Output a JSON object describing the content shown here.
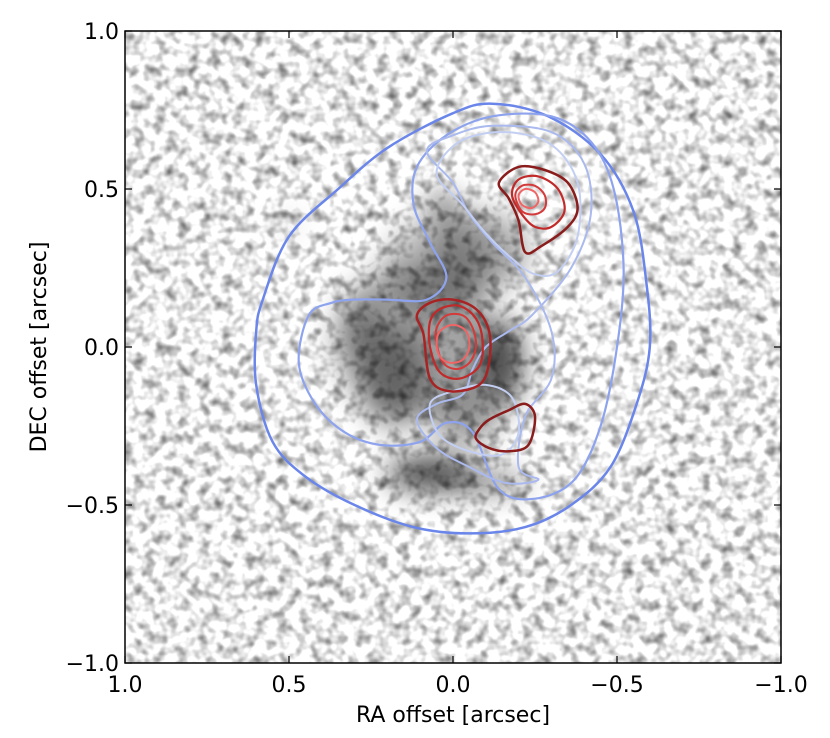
{
  "chart_data": {
    "type": "contour",
    "title": "",
    "xlabel": "RA offset [arcsec]",
    "ylabel": "DEC offset [arcsec]",
    "xlim": [
      1.0,
      -1.0
    ],
    "ylim": [
      -1.0,
      1.0
    ],
    "x_inverted": true,
    "grid": false,
    "background": "grayscale image",
    "x_ticks": [
      {
        "value": 1.0,
        "label": "1.0"
      },
      {
        "value": 0.5,
        "label": "0.5"
      },
      {
        "value": 0.0,
        "label": "0.0"
      },
      {
        "value": -0.5,
        "label": "−0.5"
      },
      {
        "value": -1.0,
        "label": "−1.0"
      }
    ],
    "y_ticks": [
      {
        "value": 1.0,
        "label": "1.0"
      },
      {
        "value": 0.5,
        "label": "0.5"
      },
      {
        "value": 0.0,
        "label": "0.0"
      },
      {
        "value": -0.5,
        "label": "−0.5"
      },
      {
        "value": -1.0,
        "label": "−1.0"
      }
    ],
    "blobs": [
      {
        "x": 0.03,
        "y": 0.45,
        "rx": 0.04,
        "ry": 0.03,
        "shade": 0.85
      },
      {
        "x": 0.12,
        "y": 0.02,
        "rx": 0.24,
        "ry": 0.24,
        "shade": 0.35
      },
      {
        "x": 0.05,
        "y": 0.25,
        "rx": 0.16,
        "ry": 0.16,
        "shade": 0.25
      },
      {
        "x": -0.08,
        "y": 0.3,
        "rx": 0.15,
        "ry": 0.13,
        "shade": 0.35
      },
      {
        "x": -0.15,
        "y": -0.05,
        "rx": 0.06,
        "ry": 0.14,
        "shade": 0.75
      },
      {
        "x": -0.04,
        "y": -0.22,
        "rx": 0.1,
        "ry": 0.09,
        "shade": 0.4
      },
      {
        "x": 0.18,
        "y": -0.1,
        "rx": 0.1,
        "ry": 0.16,
        "shade": 0.4
      },
      {
        "x": 0.07,
        "y": -0.4,
        "rx": 0.13,
        "ry": 0.05,
        "shade": 0.8
      },
      {
        "x": -0.1,
        "y": -0.43,
        "rx": 0.13,
        "ry": 0.03,
        "shade": 0.55
      },
      {
        "x": 0.28,
        "y": 0.06,
        "rx": 0.05,
        "ry": 0.1,
        "shade": 0.35
      },
      {
        "x": 0.5,
        "y": 0.39,
        "rx": 0.012,
        "ry": 0.012,
        "shade": 1.0
      }
    ],
    "series": [
      {
        "color": "#6b86ea",
        "width": 2.5,
        "points": [
          [
            0.58,
            0.15
          ],
          [
            0.5,
            0.35
          ],
          [
            0.35,
            0.5
          ],
          [
            0.2,
            0.63
          ],
          [
            0.0,
            0.74
          ],
          [
            -0.12,
            0.77
          ],
          [
            -0.29,
            0.73
          ],
          [
            -0.45,
            0.61
          ],
          [
            -0.55,
            0.43
          ],
          [
            -0.59,
            0.2
          ],
          [
            -0.6,
            0.0
          ],
          [
            -0.56,
            -0.18
          ],
          [
            -0.48,
            -0.38
          ],
          [
            -0.36,
            -0.5
          ],
          [
            -0.22,
            -0.57
          ],
          [
            -0.05,
            -0.59
          ],
          [
            0.12,
            -0.57
          ],
          [
            0.3,
            -0.5
          ],
          [
            0.45,
            -0.41
          ],
          [
            0.55,
            -0.3
          ],
          [
            0.6,
            -0.12
          ],
          [
            0.6,
            0.05
          ]
        ]
      },
      {
        "color": "#8ea3ee",
        "width": 2.2,
        "points": [
          [
            0.44,
            0.1
          ],
          [
            0.47,
            -0.05
          ],
          [
            0.42,
            -0.18
          ],
          [
            0.33,
            -0.27
          ],
          [
            0.22,
            -0.31
          ],
          [
            0.1,
            -0.3
          ],
          [
            0.02,
            -0.24
          ],
          [
            -0.06,
            -0.27
          ],
          [
            -0.14,
            -0.45
          ],
          [
            -0.25,
            -0.48
          ],
          [
            -0.37,
            -0.42
          ],
          [
            -0.45,
            -0.25
          ],
          [
            -0.5,
            0.0
          ],
          [
            -0.52,
            0.25
          ],
          [
            -0.49,
            0.5
          ],
          [
            -0.42,
            0.65
          ],
          [
            -0.3,
            0.73
          ],
          [
            -0.12,
            0.73
          ],
          [
            0.02,
            0.67
          ],
          [
            0.11,
            0.57
          ],
          [
            0.12,
            0.45
          ],
          [
            0.07,
            0.33
          ],
          [
            0.02,
            0.22
          ],
          [
            0.08,
            0.15
          ],
          [
            0.2,
            0.15
          ],
          [
            0.3,
            0.15
          ],
          [
            0.37,
            0.14
          ]
        ]
      },
      {
        "color": "#aab9ee",
        "width": 2.0,
        "points": [
          [
            0.08,
            0.62
          ],
          [
            0.0,
            0.52
          ],
          [
            -0.05,
            0.42
          ],
          [
            -0.12,
            0.33
          ],
          [
            -0.22,
            0.22
          ],
          [
            -0.3,
            0.05
          ],
          [
            -0.3,
            -0.1
          ],
          [
            -0.22,
            -0.22
          ],
          [
            -0.2,
            -0.38
          ],
          [
            -0.26,
            -0.42
          ],
          [
            -0.16,
            -0.43
          ],
          [
            -0.05,
            -0.38
          ],
          [
            0.05,
            -0.32
          ],
          [
            0.11,
            -0.23
          ],
          [
            0.05,
            -0.18
          ],
          [
            -0.03,
            -0.15
          ],
          [
            -0.06,
            -0.07
          ],
          [
            -0.1,
            0.0
          ],
          [
            -0.17,
            0.05
          ],
          [
            -0.24,
            0.1
          ],
          [
            -0.36,
            0.25
          ],
          [
            -0.42,
            0.42
          ],
          [
            -0.4,
            0.58
          ],
          [
            -0.3,
            0.68
          ],
          [
            -0.12,
            0.7
          ],
          [
            0.0,
            0.67
          ]
        ]
      },
      {
        "color": "#c3cff2",
        "width": 2.0,
        "points": [
          [
            0.05,
            0.55
          ],
          [
            -0.03,
            0.45
          ],
          [
            -0.1,
            0.36
          ],
          [
            -0.18,
            0.28
          ],
          [
            -0.25,
            0.23
          ],
          [
            -0.32,
            0.24
          ],
          [
            -0.38,
            0.35
          ],
          [
            -0.38,
            0.52
          ],
          [
            -0.3,
            0.64
          ],
          [
            -0.16,
            0.68
          ],
          [
            -0.02,
            0.65
          ]
        ]
      },
      {
        "color": "#c3cff2",
        "width": 2.0,
        "points": [
          [
            0.07,
            -0.18
          ],
          [
            0.0,
            -0.14
          ],
          [
            -0.1,
            -0.12
          ],
          [
            -0.18,
            -0.16
          ],
          [
            -0.2,
            -0.27
          ],
          [
            -0.15,
            -0.34
          ],
          [
            -0.05,
            -0.33
          ],
          [
            0.04,
            -0.28
          ]
        ]
      },
      {
        "color": "#a82424",
        "width": 2.5,
        "points": [
          [
            0.09,
            0.04
          ],
          [
            0.11,
            0.1
          ],
          [
            0.07,
            0.14
          ],
          [
            0.0,
            0.15
          ],
          [
            -0.07,
            0.12
          ],
          [
            -0.11,
            0.05
          ],
          [
            -0.11,
            -0.05
          ],
          [
            -0.08,
            -0.12
          ],
          [
            0.01,
            -0.14
          ],
          [
            0.07,
            -0.1
          ]
        ]
      },
      {
        "color": "#c22a2a",
        "width": 2.2,
        "points": [
          [
            0.07,
            0.08
          ],
          [
            0.04,
            0.12
          ],
          [
            -0.02,
            0.13
          ],
          [
            -0.07,
            0.09
          ],
          [
            -0.09,
            0.02
          ],
          [
            -0.08,
            -0.06
          ],
          [
            -0.02,
            -0.1
          ],
          [
            0.04,
            -0.08
          ],
          [
            0.07,
            0.0
          ]
        ]
      },
      {
        "color": "#d53a3a",
        "width": 2.0,
        "points": [
          [
            0.05,
            0.06
          ],
          [
            0.02,
            0.1
          ],
          [
            -0.03,
            0.1
          ],
          [
            -0.06,
            0.06
          ],
          [
            -0.07,
            0.0
          ],
          [
            -0.05,
            -0.05
          ],
          [
            -0.01,
            -0.07
          ],
          [
            0.03,
            -0.05
          ],
          [
            0.05,
            0.01
          ]
        ]
      },
      {
        "color": "#f06565",
        "width": 2.0,
        "points": [
          [
            0.05,
            0.01
          ],
          [
            0.04,
            0.05
          ],
          [
            0.0,
            0.07
          ],
          [
            -0.04,
            0.05
          ],
          [
            -0.05,
            0.0
          ],
          [
            -0.03,
            -0.04
          ],
          [
            0.01,
            -0.05
          ],
          [
            0.04,
            -0.03
          ]
        ]
      },
      {
        "color": "#8a1c1c",
        "width": 2.5,
        "points": [
          [
            -0.07,
            -0.29
          ],
          [
            -0.11,
            -0.32
          ],
          [
            -0.17,
            -0.33
          ],
          [
            -0.23,
            -0.31
          ],
          [
            -0.25,
            -0.22
          ],
          [
            -0.22,
            -0.18
          ],
          [
            -0.17,
            -0.2
          ],
          [
            -0.11,
            -0.23
          ],
          [
            -0.08,
            -0.26
          ]
        ]
      },
      {
        "color": "#8a1c1c",
        "width": 2.5,
        "points": [
          [
            -0.17,
            0.47
          ],
          [
            -0.14,
            0.52
          ],
          [
            -0.2,
            0.57
          ],
          [
            -0.28,
            0.56
          ],
          [
            -0.35,
            0.52
          ],
          [
            -0.38,
            0.44
          ],
          [
            -0.35,
            0.38
          ],
          [
            -0.27,
            0.32
          ],
          [
            -0.22,
            0.3
          ],
          [
            -0.2,
            0.4
          ]
        ]
      },
      {
        "color": "#c22a2a",
        "width": 2.2,
        "points": [
          [
            -0.18,
            0.48
          ],
          [
            -0.2,
            0.53
          ],
          [
            -0.26,
            0.54
          ],
          [
            -0.32,
            0.5
          ],
          [
            -0.34,
            0.43
          ],
          [
            -0.3,
            0.38
          ],
          [
            -0.25,
            0.38
          ],
          [
            -0.21,
            0.42
          ]
        ]
      },
      {
        "color": "#d53a3a",
        "width": 2.0,
        "points": [
          [
            -0.19,
            0.48
          ],
          [
            -0.21,
            0.51
          ],
          [
            -0.25,
            0.51
          ],
          [
            -0.28,
            0.48
          ],
          [
            -0.28,
            0.44
          ],
          [
            -0.25,
            0.42
          ],
          [
            -0.21,
            0.43
          ]
        ]
      },
      {
        "color": "#f06565",
        "width": 2.0,
        "points": [
          [
            -0.2,
            0.48
          ],
          [
            -0.22,
            0.5
          ],
          [
            -0.25,
            0.49
          ],
          [
            -0.26,
            0.46
          ],
          [
            -0.24,
            0.44
          ],
          [
            -0.21,
            0.45
          ]
        ]
      }
    ]
  }
}
